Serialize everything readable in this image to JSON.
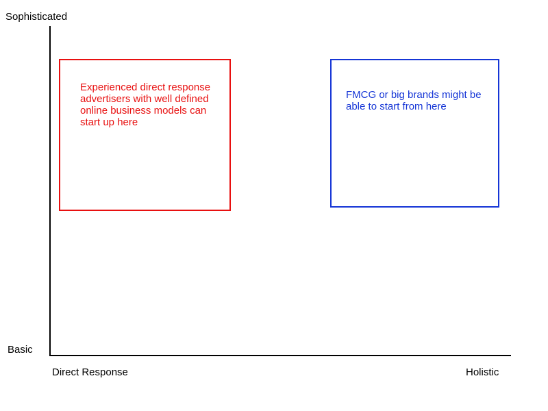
{
  "diagram": {
    "y_axis": {
      "top_label": "Sophisticated",
      "bottom_label": "Basic"
    },
    "x_axis": {
      "left_label": "Direct Response",
      "right_label": "Holistic"
    },
    "boxes": [
      {
        "text": "Experienced direct response advertisers with well defined online business models can start up here",
        "color": "#e81010"
      },
      {
        "text": "FMCG or big brands might be able to start from here",
        "color": "#1535d6"
      }
    ]
  }
}
